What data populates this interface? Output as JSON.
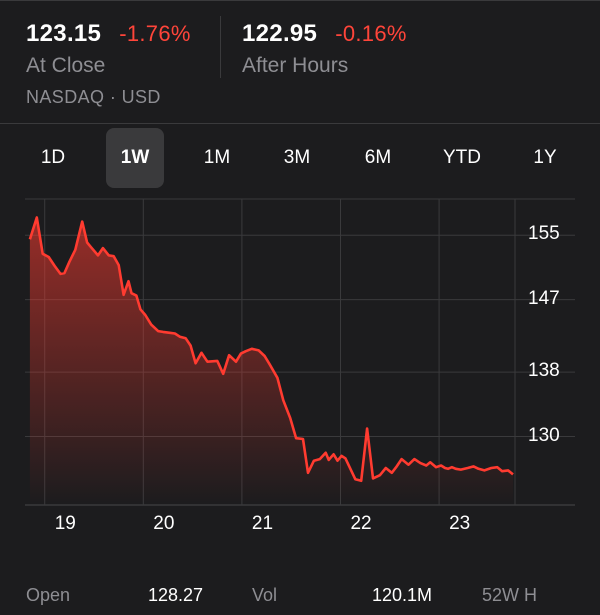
{
  "quote": {
    "close_price": "123.15",
    "close_change": "-1.76%",
    "close_label": "At Close",
    "after_price": "122.95",
    "after_change": "-0.16%",
    "after_label": "After Hours",
    "exchange": "NASDAQ · USD"
  },
  "tabs": [
    {
      "label": "1D",
      "selected": false
    },
    {
      "label": "1W",
      "selected": true
    },
    {
      "label": "1M",
      "selected": false
    },
    {
      "label": "3M",
      "selected": false
    },
    {
      "label": "6M",
      "selected": false
    },
    {
      "label": "YTD",
      "selected": false
    },
    {
      "label": "1Y",
      "selected": false
    }
  ],
  "colors": {
    "background": "#1c1c1e",
    "line": "#ff3b30",
    "negative": "#ff453a",
    "muted": "#8e8e93"
  },
  "chart_data": {
    "type": "area",
    "title": "",
    "xlabel": "",
    "ylabel": "",
    "ylim": [
      121.5,
      160
    ],
    "y_ticks": [
      "155",
      "147",
      "138",
      "130"
    ],
    "y_tick_values": [
      155,
      147,
      138,
      130
    ],
    "x_ticks": [
      "19",
      "20",
      "21",
      "22",
      "23"
    ],
    "x_tick_values": [
      19,
      20,
      21,
      22,
      23
    ],
    "series": [
      {
        "x": [
          18.8,
          18.87,
          18.93,
          18.99,
          19.05,
          19.11,
          19.15,
          19.2,
          19.26,
          19.33,
          19.38,
          19.42,
          19.49,
          19.54,
          19.6,
          19.65,
          19.7,
          19.75,
          19.8,
          19.83,
          19.88,
          19.92,
          19.97,
          20.03,
          20.1,
          20.15,
          20.21,
          20.27,
          20.32,
          20.38,
          20.43,
          20.48,
          20.54,
          20.6,
          20.7,
          20.76,
          20.82,
          20.89,
          20.94,
          20.99,
          21.05,
          21.12,
          21.18,
          21.23,
          21.31,
          21.37,
          21.44,
          21.5,
          21.57,
          21.62,
          21.68,
          21.74,
          21.8,
          21.83,
          21.88,
          21.92,
          21.96,
          22.0,
          22.1,
          22.16,
          22.22,
          22.28,
          22.35,
          22.41,
          22.47,
          22.52,
          22.57,
          22.64,
          22.7,
          22.76,
          22.82,
          22.86,
          22.92,
          22.97,
          23.01,
          23.04,
          23.08,
          23.12,
          23.17,
          23.24,
          23.3,
          23.35,
          23.41,
          23.48,
          23.54,
          23.59,
          23.65,
          23.7
        ],
        "y": [
          154.5,
          157.2,
          152.7,
          152.3,
          151.2,
          150.2,
          150.3,
          151.7,
          153.2,
          156.7,
          154.1,
          153.5,
          152.5,
          153.4,
          152.5,
          152.4,
          151.3,
          147.6,
          149.3,
          147.8,
          147.5,
          145.8,
          145.1,
          143.9,
          143.1,
          143.0,
          142.9,
          142.8,
          142.4,
          142.2,
          141.3,
          139.1,
          140.4,
          139.3,
          139.4,
          137.8,
          140.1,
          139.3,
          140.3,
          140.6,
          140.9,
          140.7,
          140.0,
          139.0,
          137.3,
          134.5,
          132.3,
          129.8,
          129.7,
          125.5,
          127.0,
          127.2,
          128.0,
          127.1,
          127.8,
          127.0,
          127.6,
          127.3,
          124.7,
          124.5,
          131.0,
          124.8,
          125.2,
          126.1,
          125.5,
          126.3,
          127.2,
          126.5,
          127.2,
          126.7,
          126.4,
          126.8,
          126.2,
          126.4,
          126.1,
          126.0,
          126.2,
          126.0,
          125.9,
          126.1,
          126.3,
          126.0,
          125.8,
          126.1,
          126.2,
          125.7,
          125.8,
          125.3
        ]
      }
    ],
    "grid": true,
    "close_price": 123.15
  },
  "stats_partial": {
    "open_label": "Open",
    "open_value": "128.27",
    "vol_label": "Vol",
    "vol_value": "120.1M",
    "high52_label": "52W H"
  }
}
